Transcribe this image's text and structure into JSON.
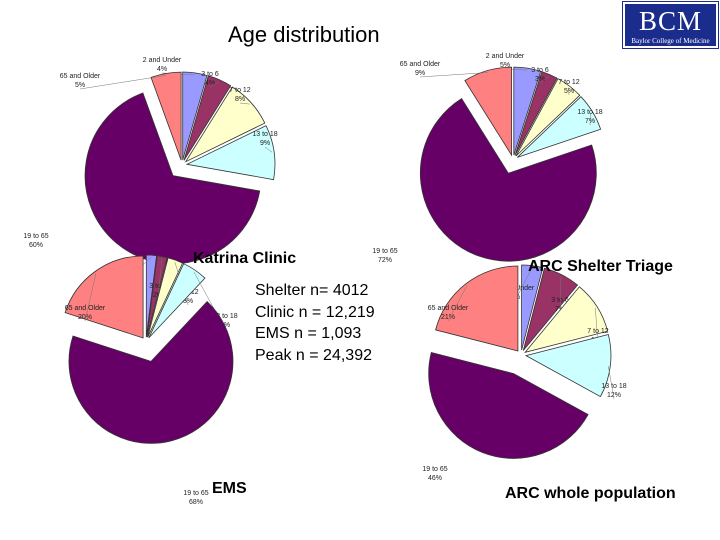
{
  "title": "Age distribution",
  "logo": {
    "big": "BCM",
    "small": "Baylor College of Medicine"
  },
  "colors": {
    "2 and Under": "#9999ff",
    "3 to 6": "#993366",
    "7 to 12": "#ffffcc",
    "13 to 18": "#ccffff",
    "19 to 65": "#660066",
    "65 and Older": "#ff8080",
    "outline": "#333333"
  },
  "stats": [
    "Shelter n= 4012",
    "Clinic n = 12,219",
    "EMS n = 1,093",
    "Peak n = 24,392"
  ],
  "chart_data": [
    {
      "type": "pie",
      "title": "Katrina Clinic",
      "slices": [
        {
          "name": "2 and Under",
          "label": "2 and Under",
          "value": 4
        },
        {
          "name": "3 to 6",
          "label": "3 to 6",
          "value": 4
        },
        {
          "name": "7 to 12",
          "label": "7 to 12",
          "value": 8
        },
        {
          "name": "13 to 18",
          "label": "13 to 18",
          "value": 9
        },
        {
          "name": "19 to 65",
          "label": "19 to 65",
          "value": 60
        },
        {
          "name": "65 and Older",
          "label": "65 and Older",
          "value": 5
        }
      ]
    },
    {
      "type": "pie",
      "title": "ARC Shelter Triage",
      "slices": [
        {
          "name": "2 and Under",
          "label": "2 and Under",
          "value": 5
        },
        {
          "name": "3 to 6",
          "label": "3 to 6",
          "value": 3
        },
        {
          "name": "7 to 12",
          "label": "7 to 12",
          "value": 5
        },
        {
          "name": "13 to 18",
          "label": "13 to 18",
          "value": 7
        },
        {
          "name": "19 to 65",
          "label": "19 to 65",
          "value": 72
        },
        {
          "name": "65 and Older",
          "label": "65 and Older",
          "value": 9
        }
      ]
    },
    {
      "type": "pie",
      "title": "EMS",
      "slices": [
        {
          "name": "2 and Under",
          "label": "2 and Under",
          "value": 2
        },
        {
          "name": "3 to 6",
          "label": "3 to 6",
          "value": 2
        },
        {
          "name": "7 to 12",
          "label": "7 to 12",
          "value": 3
        },
        {
          "name": "13 to 18",
          "label": "13 to 18",
          "value": 5
        },
        {
          "name": "19 to 65",
          "label": "19 to 65",
          "value": 68
        },
        {
          "name": "65 and Older",
          "label": "65 and Older",
          "value": 20
        }
      ]
    },
    {
      "type": "pie",
      "title": "ARC whole population",
      "slices": [
        {
          "name": "2 and Under",
          "label": "2 and Under",
          "value": 4
        },
        {
          "name": "3 to 6",
          "label": "3 to 6",
          "value": 7
        },
        {
          "name": "7 to 12",
          "label": "7 to 12",
          "value": 10
        },
        {
          "name": "13 to 18",
          "label": "13 to 18",
          "value": 12
        },
        {
          "name": "19 to 65",
          "label": "19 to 65",
          "value": 46
        },
        {
          "name": "65 and Older",
          "label": "65 and Older",
          "value": 21
        }
      ]
    }
  ]
}
